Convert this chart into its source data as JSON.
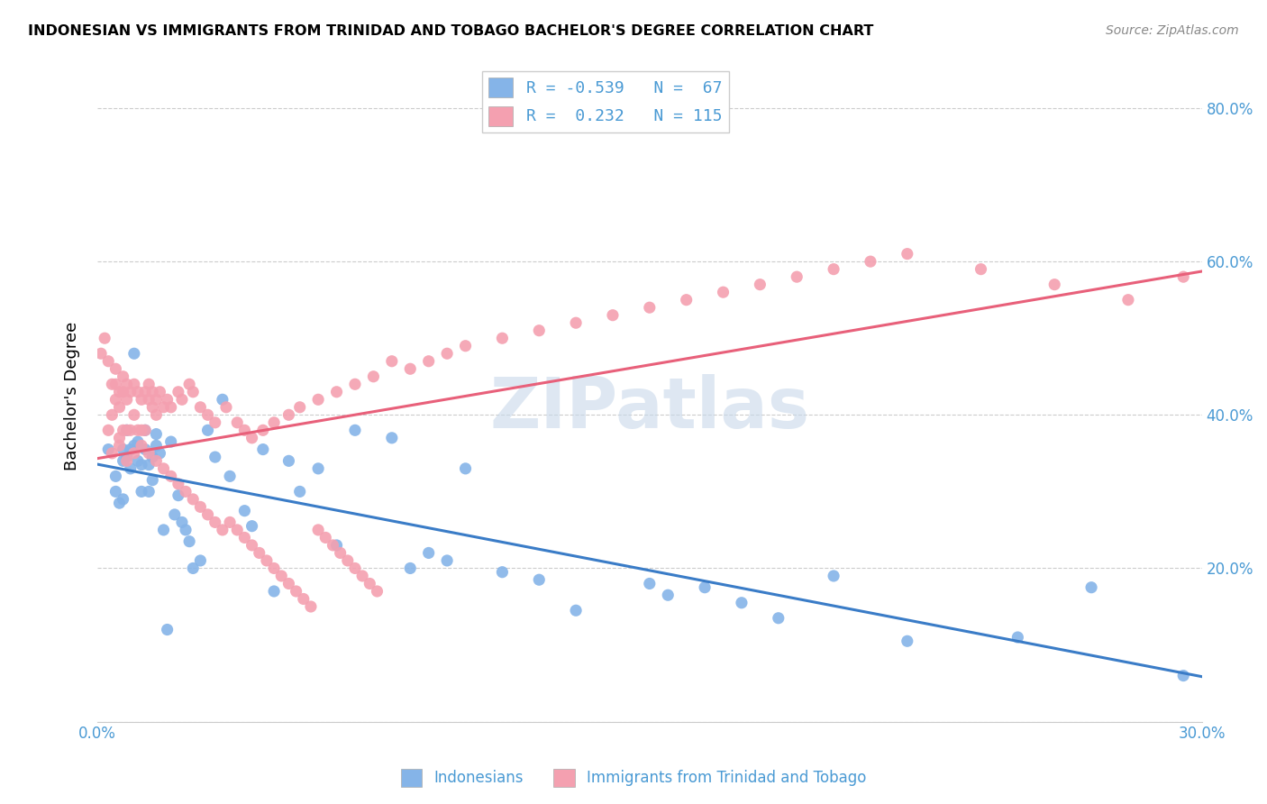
{
  "title": "INDONESIAN VS IMMIGRANTS FROM TRINIDAD AND TOBAGO BACHELOR'S DEGREE CORRELATION CHART",
  "source": "Source: ZipAtlas.com",
  "ylabel": "Bachelor's Degree",
  "xlim": [
    0.0,
    0.3
  ],
  "ylim": [
    0.0,
    0.85
  ],
  "xticks": [
    0.0,
    0.05,
    0.1,
    0.15,
    0.2,
    0.25,
    0.3
  ],
  "xtick_labels": [
    "0.0%",
    "",
    "",
    "",
    "",
    "",
    "30.0%"
  ],
  "yticks": [
    0.0,
    0.2,
    0.4,
    0.6,
    0.8
  ],
  "ytick_labels": [
    "",
    "20.0%",
    "40.0%",
    "60.0%",
    "80.0%"
  ],
  "blue_color": "#85b4e8",
  "pink_color": "#f4a0b0",
  "blue_line_color": "#3a7cc7",
  "pink_line_color": "#e8607a",
  "legend_blue_r": "-0.539",
  "legend_blue_n": "67",
  "legend_pink_r": " 0.232",
  "legend_pink_n": "115",
  "watermark": "ZIPatlas",
  "blue_points_x": [
    0.003,
    0.005,
    0.005,
    0.006,
    0.007,
    0.007,
    0.007,
    0.008,
    0.008,
    0.009,
    0.009,
    0.01,
    0.01,
    0.011,
    0.011,
    0.012,
    0.012,
    0.013,
    0.013,
    0.014,
    0.014,
    0.015,
    0.015,
    0.016,
    0.016,
    0.017,
    0.018,
    0.019,
    0.02,
    0.021,
    0.022,
    0.023,
    0.024,
    0.025,
    0.026,
    0.028,
    0.03,
    0.032,
    0.034,
    0.036,
    0.04,
    0.042,
    0.045,
    0.048,
    0.052,
    0.055,
    0.06,
    0.065,
    0.07,
    0.08,
    0.085,
    0.1,
    0.11,
    0.12,
    0.15,
    0.165,
    0.185,
    0.2,
    0.22,
    0.25,
    0.27,
    0.295,
    0.155,
    0.175,
    0.13,
    0.09,
    0.095
  ],
  "blue_points_y": [
    0.355,
    0.32,
    0.3,
    0.285,
    0.355,
    0.34,
    0.29,
    0.38,
    0.345,
    0.355,
    0.33,
    0.48,
    0.36,
    0.365,
    0.34,
    0.335,
    0.3,
    0.38,
    0.355,
    0.335,
    0.3,
    0.345,
    0.315,
    0.375,
    0.36,
    0.35,
    0.25,
    0.12,
    0.365,
    0.27,
    0.295,
    0.26,
    0.25,
    0.235,
    0.2,
    0.21,
    0.38,
    0.345,
    0.42,
    0.32,
    0.275,
    0.255,
    0.355,
    0.17,
    0.34,
    0.3,
    0.33,
    0.23,
    0.38,
    0.37,
    0.2,
    0.33,
    0.195,
    0.185,
    0.18,
    0.175,
    0.135,
    0.19,
    0.105,
    0.11,
    0.175,
    0.06,
    0.165,
    0.155,
    0.145,
    0.22,
    0.21
  ],
  "pink_points_x": [
    0.001,
    0.002,
    0.003,
    0.003,
    0.004,
    0.004,
    0.005,
    0.005,
    0.005,
    0.006,
    0.006,
    0.006,
    0.007,
    0.007,
    0.007,
    0.008,
    0.008,
    0.008,
    0.009,
    0.009,
    0.01,
    0.01,
    0.011,
    0.011,
    0.012,
    0.012,
    0.013,
    0.013,
    0.014,
    0.014,
    0.015,
    0.015,
    0.016,
    0.016,
    0.017,
    0.018,
    0.019,
    0.02,
    0.022,
    0.023,
    0.025,
    0.026,
    0.028,
    0.03,
    0.032,
    0.035,
    0.038,
    0.04,
    0.042,
    0.045,
    0.048,
    0.052,
    0.055,
    0.06,
    0.065,
    0.07,
    0.075,
    0.08,
    0.085,
    0.09,
    0.095,
    0.1,
    0.11,
    0.12,
    0.13,
    0.14,
    0.15,
    0.16,
    0.17,
    0.18,
    0.19,
    0.2,
    0.21,
    0.22,
    0.24,
    0.26,
    0.28,
    0.295,
    0.004,
    0.006,
    0.008,
    0.01,
    0.012,
    0.014,
    0.016,
    0.018,
    0.02,
    0.022,
    0.024,
    0.026,
    0.028,
    0.03,
    0.032,
    0.034,
    0.036,
    0.038,
    0.04,
    0.042,
    0.044,
    0.046,
    0.048,
    0.05,
    0.052,
    0.054,
    0.056,
    0.058,
    0.06,
    0.062,
    0.064,
    0.066,
    0.068,
    0.07,
    0.072,
    0.074,
    0.076
  ],
  "pink_points_y": [
    0.48,
    0.5,
    0.38,
    0.47,
    0.44,
    0.4,
    0.46,
    0.44,
    0.42,
    0.43,
    0.41,
    0.37,
    0.45,
    0.43,
    0.38,
    0.44,
    0.42,
    0.38,
    0.43,
    0.38,
    0.44,
    0.4,
    0.43,
    0.38,
    0.42,
    0.38,
    0.43,
    0.38,
    0.44,
    0.42,
    0.43,
    0.41,
    0.42,
    0.4,
    0.43,
    0.41,
    0.42,
    0.41,
    0.43,
    0.42,
    0.44,
    0.43,
    0.41,
    0.4,
    0.39,
    0.41,
    0.39,
    0.38,
    0.37,
    0.38,
    0.39,
    0.4,
    0.41,
    0.42,
    0.43,
    0.44,
    0.45,
    0.47,
    0.46,
    0.47,
    0.48,
    0.49,
    0.5,
    0.51,
    0.52,
    0.53,
    0.54,
    0.55,
    0.56,
    0.57,
    0.58,
    0.59,
    0.6,
    0.61,
    0.59,
    0.57,
    0.55,
    0.58,
    0.35,
    0.36,
    0.34,
    0.35,
    0.36,
    0.35,
    0.34,
    0.33,
    0.32,
    0.31,
    0.3,
    0.29,
    0.28,
    0.27,
    0.26,
    0.25,
    0.26,
    0.25,
    0.24,
    0.23,
    0.22,
    0.21,
    0.2,
    0.19,
    0.18,
    0.17,
    0.16,
    0.15,
    0.25,
    0.24,
    0.23,
    0.22,
    0.21,
    0.2,
    0.19,
    0.18,
    0.17
  ]
}
